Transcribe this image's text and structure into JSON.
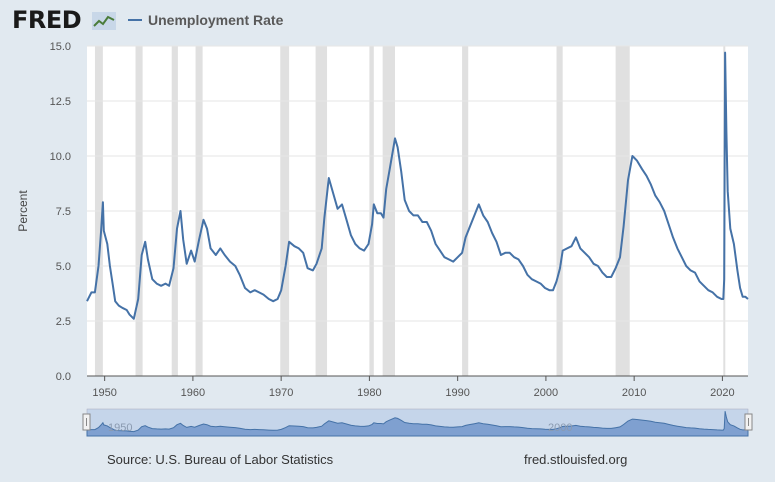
{
  "header": {
    "logo_text": "FRED",
    "legend_label": "Unemployment Rate"
  },
  "footer": {
    "source": "Source: U.S. Bureau of Labor Statistics",
    "url": "fred.stlouisfed.org"
  },
  "colors": {
    "series": "#4572a7",
    "recession": "#e0e0e0",
    "plot_bg": "#ffffff",
    "page_bg": "#e1e9f0",
    "navigator_fill": "#9fb6d8"
  },
  "chart_data": {
    "type": "line",
    "title": "",
    "xlabel": "",
    "ylabel": "Percent",
    "xlim": [
      1948.0,
      2022.9
    ],
    "ylim": [
      0,
      15
    ],
    "x_ticks": [
      1950,
      1960,
      1970,
      1980,
      1990,
      2000,
      2010,
      2020
    ],
    "y_ticks": [
      "0.0",
      "2.5",
      "5.0",
      "7.5",
      "10.0",
      "12.5",
      "15.0"
    ],
    "grid": "horizontal",
    "recession_periods": [
      [
        1948.9,
        1949.8
      ],
      [
        1953.5,
        1954.3
      ],
      [
        1957.6,
        1958.3
      ],
      [
        1960.3,
        1961.1
      ],
      [
        1969.9,
        1970.9
      ],
      [
        1973.9,
        1975.2
      ],
      [
        1980.0,
        1980.5
      ],
      [
        1981.5,
        1982.9
      ],
      [
        1990.5,
        1991.2
      ],
      [
        2001.2,
        2001.9
      ],
      [
        2007.9,
        2009.5
      ],
      [
        2020.1,
        2020.3
      ]
    ],
    "series": [
      {
        "name": "Unemployment Rate",
        "points": [
          [
            1948.0,
            3.4
          ],
          [
            1948.5,
            3.8
          ],
          [
            1948.9,
            3.8
          ],
          [
            1949.3,
            5.0
          ],
          [
            1949.6,
            6.6
          ],
          [
            1949.8,
            7.9
          ],
          [
            1949.9,
            6.6
          ],
          [
            1950.3,
            6.0
          ],
          [
            1950.6,
            5.0
          ],
          [
            1950.9,
            4.2
          ],
          [
            1951.2,
            3.4
          ],
          [
            1951.6,
            3.2
          ],
          [
            1952.0,
            3.1
          ],
          [
            1952.5,
            3.0
          ],
          [
            1952.8,
            2.8
          ],
          [
            1953.3,
            2.6
          ],
          [
            1953.8,
            3.5
          ],
          [
            1954.2,
            5.5
          ],
          [
            1954.6,
            6.1
          ],
          [
            1954.9,
            5.3
          ],
          [
            1955.4,
            4.4
          ],
          [
            1955.9,
            4.2
          ],
          [
            1956.4,
            4.1
          ],
          [
            1956.9,
            4.2
          ],
          [
            1957.3,
            4.1
          ],
          [
            1957.8,
            4.9
          ],
          [
            1958.2,
            6.7
          ],
          [
            1958.6,
            7.5
          ],
          [
            1958.9,
            6.2
          ],
          [
            1959.3,
            5.1
          ],
          [
            1959.8,
            5.7
          ],
          [
            1960.2,
            5.2
          ],
          [
            1960.7,
            6.2
          ],
          [
            1961.2,
            7.1
          ],
          [
            1961.6,
            6.7
          ],
          [
            1962.0,
            5.8
          ],
          [
            1962.6,
            5.5
          ],
          [
            1963.1,
            5.8
          ],
          [
            1963.6,
            5.5
          ],
          [
            1964.2,
            5.2
          ],
          [
            1964.8,
            5.0
          ],
          [
            1965.3,
            4.6
          ],
          [
            1965.9,
            4.0
          ],
          [
            1966.5,
            3.8
          ],
          [
            1967.0,
            3.9
          ],
          [
            1967.5,
            3.8
          ],
          [
            1968.0,
            3.7
          ],
          [
            1968.6,
            3.5
          ],
          [
            1969.1,
            3.4
          ],
          [
            1969.6,
            3.5
          ],
          [
            1970.0,
            3.9
          ],
          [
            1970.5,
            5.0
          ],
          [
            1970.9,
            6.1
          ],
          [
            1971.5,
            5.9
          ],
          [
            1972.0,
            5.8
          ],
          [
            1972.5,
            5.6
          ],
          [
            1973.0,
            4.9
          ],
          [
            1973.6,
            4.8
          ],
          [
            1974.0,
            5.1
          ],
          [
            1974.6,
            5.8
          ],
          [
            1974.9,
            7.2
          ],
          [
            1975.4,
            9.0
          ],
          [
            1975.9,
            8.3
          ],
          [
            1976.4,
            7.6
          ],
          [
            1976.9,
            7.8
          ],
          [
            1977.4,
            7.1
          ],
          [
            1977.9,
            6.4
          ],
          [
            1978.4,
            6.0
          ],
          [
            1978.9,
            5.8
          ],
          [
            1979.4,
            5.7
          ],
          [
            1979.9,
            6.0
          ],
          [
            1980.3,
            6.9
          ],
          [
            1980.5,
            7.8
          ],
          [
            1980.9,
            7.4
          ],
          [
            1981.3,
            7.4
          ],
          [
            1981.6,
            7.2
          ],
          [
            1981.9,
            8.5
          ],
          [
            1982.3,
            9.4
          ],
          [
            1982.9,
            10.8
          ],
          [
            1983.2,
            10.4
          ],
          [
            1983.6,
            9.3
          ],
          [
            1984.0,
            8.0
          ],
          [
            1984.5,
            7.5
          ],
          [
            1985.0,
            7.3
          ],
          [
            1985.5,
            7.3
          ],
          [
            1986.0,
            7.0
          ],
          [
            1986.5,
            7.0
          ],
          [
            1987.0,
            6.6
          ],
          [
            1987.5,
            6.0
          ],
          [
            1988.0,
            5.7
          ],
          [
            1988.5,
            5.4
          ],
          [
            1989.0,
            5.3
          ],
          [
            1989.5,
            5.2
          ],
          [
            1990.0,
            5.4
          ],
          [
            1990.5,
            5.6
          ],
          [
            1990.9,
            6.3
          ],
          [
            1991.4,
            6.8
          ],
          [
            1991.9,
            7.3
          ],
          [
            1992.4,
            7.8
          ],
          [
            1992.9,
            7.3
          ],
          [
            1993.4,
            7.0
          ],
          [
            1993.9,
            6.5
          ],
          [
            1994.4,
            6.1
          ],
          [
            1994.9,
            5.5
          ],
          [
            1995.4,
            5.6
          ],
          [
            1995.9,
            5.6
          ],
          [
            1996.4,
            5.4
          ],
          [
            1996.9,
            5.3
          ],
          [
            1997.4,
            5.0
          ],
          [
            1997.9,
            4.6
          ],
          [
            1998.4,
            4.4
          ],
          [
            1998.9,
            4.3
          ],
          [
            1999.4,
            4.2
          ],
          [
            1999.9,
            4.0
          ],
          [
            2000.4,
            3.9
          ],
          [
            2000.8,
            3.9
          ],
          [
            2001.2,
            4.3
          ],
          [
            2001.6,
            4.9
          ],
          [
            2001.9,
            5.7
          ],
          [
            2002.4,
            5.8
          ],
          [
            2002.9,
            5.9
          ],
          [
            2003.4,
            6.3
          ],
          [
            2003.9,
            5.8
          ],
          [
            2004.4,
            5.6
          ],
          [
            2004.9,
            5.4
          ],
          [
            2005.4,
            5.1
          ],
          [
            2005.9,
            5.0
          ],
          [
            2006.4,
            4.7
          ],
          [
            2006.9,
            4.5
          ],
          [
            2007.4,
            4.5
          ],
          [
            2007.9,
            4.9
          ],
          [
            2008.4,
            5.4
          ],
          [
            2008.8,
            6.8
          ],
          [
            2009.3,
            8.9
          ],
          [
            2009.8,
            10.0
          ],
          [
            2010.3,
            9.8
          ],
          [
            2010.9,
            9.4
          ],
          [
            2011.4,
            9.1
          ],
          [
            2011.9,
            8.7
          ],
          [
            2012.4,
            8.2
          ],
          [
            2012.9,
            7.9
          ],
          [
            2013.4,
            7.5
          ],
          [
            2013.9,
            6.9
          ],
          [
            2014.4,
            6.3
          ],
          [
            2014.9,
            5.8
          ],
          [
            2015.4,
            5.4
          ],
          [
            2015.9,
            5.0
          ],
          [
            2016.4,
            4.8
          ],
          [
            2016.9,
            4.7
          ],
          [
            2017.4,
            4.3
          ],
          [
            2017.9,
            4.1
          ],
          [
            2018.4,
            3.9
          ],
          [
            2018.9,
            3.8
          ],
          [
            2019.4,
            3.6
          ],
          [
            2019.9,
            3.5
          ],
          [
            2020.1,
            3.5
          ],
          [
            2020.2,
            4.4
          ],
          [
            2020.3,
            14.7
          ],
          [
            2020.45,
            11.1
          ],
          [
            2020.6,
            8.4
          ],
          [
            2020.9,
            6.7
          ],
          [
            2021.3,
            6.0
          ],
          [
            2021.7,
            4.8
          ],
          [
            2022.0,
            4.0
          ],
          [
            2022.3,
            3.6
          ],
          [
            2022.6,
            3.6
          ],
          [
            2022.9,
            3.5
          ]
        ]
      }
    ],
    "navigator": {
      "labels": [
        "1950",
        "2000"
      ]
    }
  }
}
